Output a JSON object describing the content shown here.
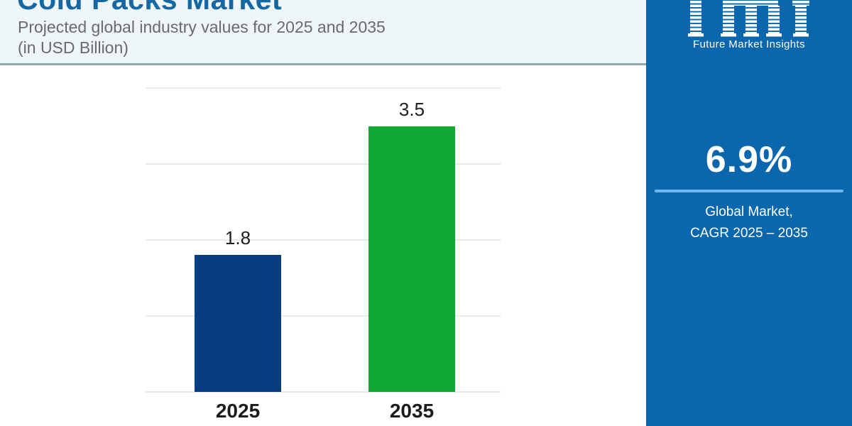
{
  "header": {
    "title": "Cold Packs Market",
    "subtitle_line1": "Projected global industry values for 2025 and 2035",
    "subtitle_line2": "(in USD Billion)"
  },
  "chart_data": {
    "type": "bar",
    "categories": [
      "2025",
      "2035"
    ],
    "values": [
      1.8,
      3.5
    ],
    "value_labels": [
      "1.8",
      "3.5"
    ],
    "bar_colors": [
      "#083d80",
      "#10a934"
    ],
    "title": "Cold Packs Market",
    "xlabel": "",
    "ylabel": "USD Billion",
    "ylim": [
      0,
      4
    ],
    "gridline_values": [
      0,
      1,
      2,
      3,
      4
    ],
    "grid": true,
    "legend": false
  },
  "sidebar": {
    "logo_text": "fmi",
    "logo_caption": "Future Market Insights",
    "cagr_value": "6.9%",
    "cagr_line1": "Global Market,",
    "cagr_line2": "CAGR 2025 – 2035"
  },
  "colors": {
    "sidebar_bg": "#0a67ad",
    "header_bg": "#eff6f9",
    "header_divider": "#8ea7b0",
    "title_text": "#1668a3",
    "subtitle_text": "#6a6a6a",
    "gridline": "#e9e9e9",
    "bar_2025": "#083d80",
    "bar_2035": "#10a934",
    "axis_label": "#1b1b1b",
    "sidebar_divider": "#6fb8e9",
    "sidebar_text": "#ffffff"
  }
}
